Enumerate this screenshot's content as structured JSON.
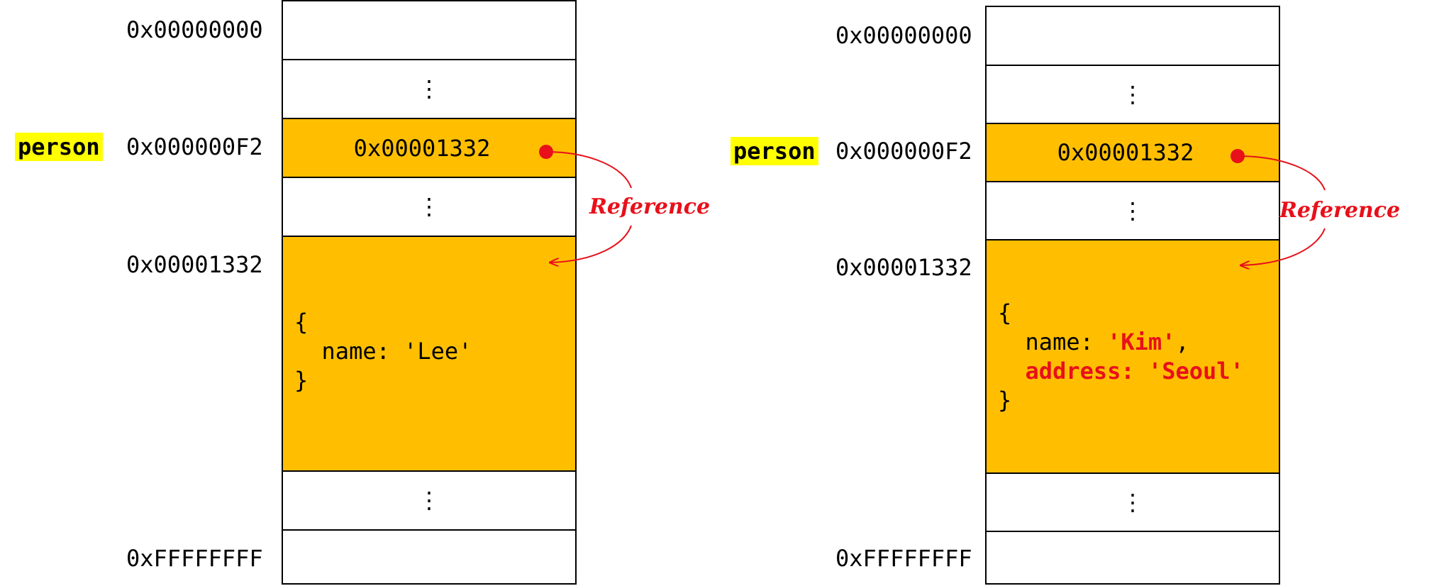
{
  "colors": {
    "highlight": "#ffbf00",
    "variable_bg": "#ffff00",
    "reference": "#e8101a"
  },
  "left": {
    "variable": "person",
    "addresses": {
      "start": "0x00000000",
      "var": "0x000000F2",
      "obj": "0x00001332",
      "end": "0xFFFFFFFF"
    },
    "dots": "⋮",
    "pointer_value": "0x00001332",
    "reference_label": "Reference",
    "object": {
      "open": "{",
      "line1_key": "name: ",
      "line1_val": "'Lee'",
      "close": "}"
    }
  },
  "right": {
    "variable": "person",
    "addresses": {
      "start": "0x00000000",
      "var": "0x000000F2",
      "obj": "0x00001332",
      "end": "0xFFFFFFFF"
    },
    "dots": "⋮",
    "pointer_value": "0x00001332",
    "reference_label": "Reference",
    "object": {
      "open": "{",
      "line1_key": "name: ",
      "line1_val": "'Kim'",
      "line1_sep": ",",
      "line2": "address: 'Seoul'",
      "close": "}"
    }
  }
}
